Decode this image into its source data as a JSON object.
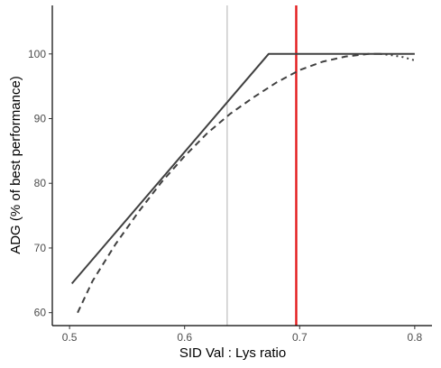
{
  "chart_data": {
    "type": "line",
    "title": "",
    "xlabel": "SID Val : Lys ratio",
    "ylabel": "ADG (% of best performance)",
    "xlim": [
      0.485,
      0.815
    ],
    "ylim": [
      58,
      107.5
    ],
    "x_ticks": [
      0.5,
      0.6,
      0.7,
      0.8
    ],
    "x_tick_labels": [
      "0.5",
      "0.6",
      "0.7",
      "0.8"
    ],
    "y_ticks": [
      60,
      70,
      80,
      90,
      100
    ],
    "y_tick_labels": [
      "60",
      "70",
      "80",
      "90",
      "100"
    ],
    "grid": false,
    "series": [
      {
        "style": "solid",
        "color": "#404040",
        "points": [
          [
            0.502,
            64.5
          ],
          [
            0.673,
            100.0
          ],
          [
            0.8,
            100.0
          ]
        ]
      },
      {
        "style": "dashed",
        "color": "#404040",
        "points": [
          [
            0.507,
            60.0
          ],
          [
            0.52,
            64.9
          ],
          [
            0.54,
            70.6
          ],
          [
            0.56,
            75.6
          ],
          [
            0.58,
            80.2
          ],
          [
            0.6,
            84.2
          ],
          [
            0.62,
            87.8
          ],
          [
            0.64,
            90.8
          ],
          [
            0.66,
            93.3
          ],
          [
            0.68,
            95.6
          ],
          [
            0.7,
            97.5
          ],
          [
            0.72,
            98.8
          ],
          [
            0.74,
            99.6
          ],
          [
            0.76,
            100.0
          ],
          [
            0.77,
            100.0
          ]
        ]
      },
      {
        "style": "dotted",
        "color": "#404040",
        "points": [
          [
            0.77,
            100.0
          ],
          [
            0.78,
            99.8
          ],
          [
            0.79,
            99.5
          ],
          [
            0.8,
            99.0
          ]
        ]
      }
    ],
    "reference_lines": [
      {
        "orientation": "vertical",
        "x": 0.637,
        "color": "#9e9e9e",
        "width": "thin"
      },
      {
        "orientation": "vertical",
        "x": 0.697,
        "color": "#e31a1c",
        "width": "thick"
      }
    ]
  }
}
